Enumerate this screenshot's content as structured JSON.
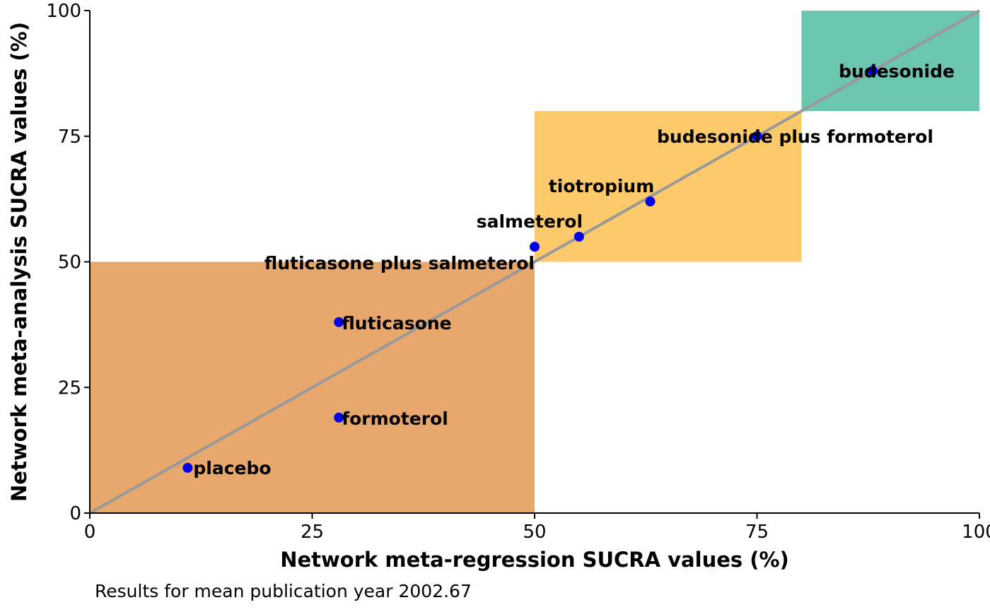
{
  "chart_data": {
    "type": "scatter",
    "xlabel": "Network meta-regression SUCRA values (%)",
    "ylabel": "Network meta-analysis SUCRA values (%)",
    "caption": "Results for mean publication year 2002.67",
    "xlim": [
      0,
      100
    ],
    "ylim": [
      0,
      100
    ],
    "x_ticks": [
      "0",
      "25",
      "50",
      "75",
      "100"
    ],
    "y_ticks": [
      "0",
      "25",
      "50",
      "75",
      "100"
    ],
    "grid": false,
    "legend": "none",
    "regions": [
      {
        "x": [
          0,
          50
        ],
        "y": [
          0,
          50
        ],
        "color": "#E8A76C"
      },
      {
        "x": [
          50,
          80
        ],
        "y": [
          50,
          80
        ],
        "color": "#FDCA6B"
      },
      {
        "x": [
          80,
          100
        ],
        "y": [
          80,
          100
        ],
        "color": "#6CC5AE"
      }
    ],
    "diagonal": {
      "from": [
        0,
        0
      ],
      "to": [
        100,
        100
      ],
      "color": "#999999"
    },
    "point_color": "#0000EE",
    "points": [
      {
        "label": "placebo",
        "x": 11,
        "y": 9
      },
      {
        "label": "formoterol",
        "x": 28,
        "y": 19
      },
      {
        "label": "fluticasone",
        "x": 28,
        "y": 38
      },
      {
        "label": "fluticasone plus salmeterol",
        "x": 50,
        "y": 53
      },
      {
        "label": "salmeterol",
        "x": 55,
        "y": 55
      },
      {
        "label": "tiotropium",
        "x": 63,
        "y": 62
      },
      {
        "label": "budesonide plus formoterol",
        "x": 75,
        "y": 75
      },
      {
        "label": "budesonide",
        "x": 88,
        "y": 88
      }
    ]
  }
}
